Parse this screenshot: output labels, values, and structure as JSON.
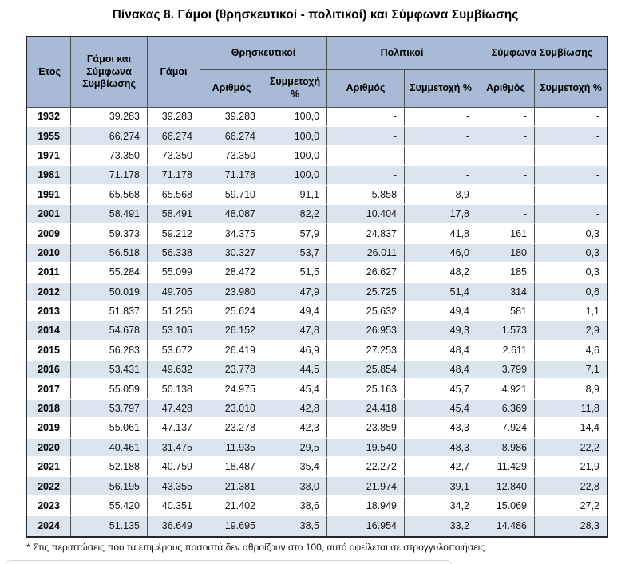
{
  "title": "Πίνακας 8. Γάμοι (θρησκευτικοί - πολιτικοί) και Σύμφωνα Συμβίωσης",
  "footnote": "* Στις περιπτώσεις που τα επιμέρους ποσοστά δεν αθροίζουν στο 100, αυτό οφείλεται σε στρογγυλοποιήσεις.",
  "colors": {
    "header_fill": "#a8bad6",
    "alt_row_fill": "#dce4f0",
    "grid_line": "#4d4d4d",
    "outer_line": "#262626"
  },
  "table": {
    "headers": {
      "year": "Έτος",
      "total": "Γάμοι και Σύμφωνα Συμβίωσης",
      "marriages": "Γάμοι",
      "group_religious": "Θρησκευτικοί",
      "group_civil": "Πολιτικοί",
      "group_cohabitation": "Σύμφωνα Συμβίωσης",
      "sub_number": "Αριθμός",
      "sub_share": "Συμμετοχή %"
    },
    "rows": [
      [
        "1932",
        "39.283",
        "39.283",
        "39.283",
        "100,0",
        "-",
        "-",
        "-",
        "-"
      ],
      [
        "1955",
        "66.274",
        "66.274",
        "66.274",
        "100,0",
        "-",
        "-",
        "-",
        "-"
      ],
      [
        "1971",
        "73.350",
        "73.350",
        "73.350",
        "100,0",
        "-",
        "-",
        "-",
        "-"
      ],
      [
        "1981",
        "71.178",
        "71.178",
        "71.178",
        "100,0",
        "-",
        "-",
        "-",
        "-"
      ],
      [
        "1991",
        "65.568",
        "65.568",
        "59.710",
        "91,1",
        "5.858",
        "8,9",
        "-",
        "-"
      ],
      [
        "2001",
        "58.491",
        "58.491",
        "48.087",
        "82,2",
        "10.404",
        "17,8",
        "-",
        "-"
      ],
      [
        "2009",
        "59.373",
        "59.212",
        "34.375",
        "57,9",
        "24.837",
        "41,8",
        "161",
        "0,3"
      ],
      [
        "2010",
        "56.518",
        "56.338",
        "30.327",
        "53,7",
        "26.011",
        "46,0",
        "180",
        "0,3"
      ],
      [
        "2011",
        "55.284",
        "55.099",
        "28.472",
        "51,5",
        "26.627",
        "48,2",
        "185",
        "0,3"
      ],
      [
        "2012",
        "50.019",
        "49.705",
        "23.980",
        "47,9",
        "25.725",
        "51,4",
        "314",
        "0,6"
      ],
      [
        "2013",
        "51.837",
        "51.256",
        "25.624",
        "49,4",
        "25.632",
        "49,4",
        "581",
        "1,1"
      ],
      [
        "2014",
        "54.678",
        "53.105",
        "26.152",
        "47,8",
        "26.953",
        "49,3",
        "1.573",
        "2,9"
      ],
      [
        "2015",
        "56.283",
        "53.672",
        "26.419",
        "46,9",
        "27.253",
        "48,4",
        "2.611",
        "4,6"
      ],
      [
        "2016",
        "53.431",
        "49.632",
        "23.778",
        "44,5",
        "25.854",
        "48,4",
        "3.799",
        "7,1"
      ],
      [
        "2017",
        "55.059",
        "50.138",
        "24.975",
        "45,4",
        "25.163",
        "45,7",
        "4.921",
        "8,9"
      ],
      [
        "2018",
        "53.797",
        "47.428",
        "23.010",
        "42,8",
        "24.418",
        "45,4",
        "6.369",
        "11,8"
      ],
      [
        "2019",
        "55.061",
        "47.137",
        "23.278",
        "42,3",
        "23.859",
        "43,3",
        "7.924",
        "14,4"
      ],
      [
        "2020",
        "40.461",
        "31.475",
        "11.935",
        "29,5",
        "19.540",
        "48,3",
        "8.986",
        "22,2"
      ],
      [
        "2021",
        "52.188",
        "40.759",
        "18.487",
        "35,4",
        "22.272",
        "42,7",
        "11.429",
        "21,9"
      ],
      [
        "2022",
        "56.195",
        "43.355",
        "21.381",
        "38,0",
        "21.974",
        "39,1",
        "12.840",
        "22,8"
      ],
      [
        "2023",
        "55.420",
        "40.351",
        "21.402",
        "38,6",
        "18.949",
        "34,2",
        "15.069",
        "27,2"
      ],
      [
        "2024",
        "51.135",
        "36.649",
        "19.695",
        "38,5",
        "16.954",
        "33,2",
        "14.486",
        "28,3"
      ]
    ]
  }
}
